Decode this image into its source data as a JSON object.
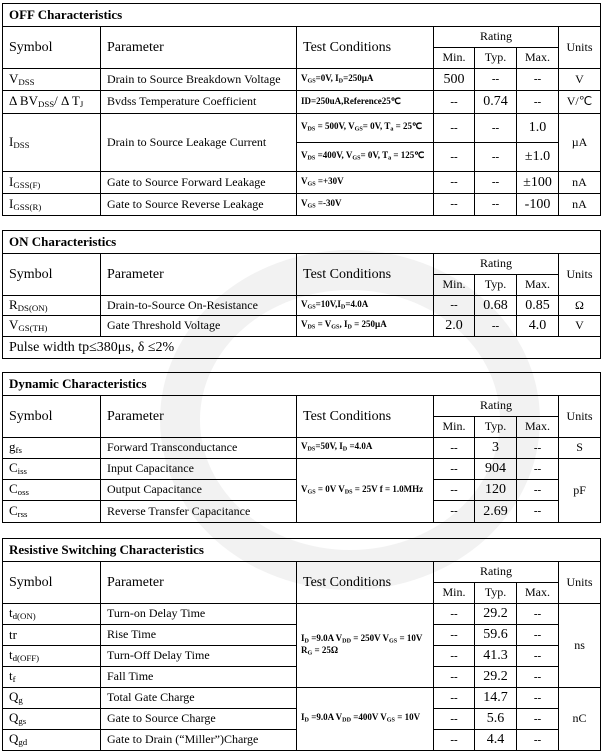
{
  "headers": {
    "symbol": "Symbol",
    "parameter": "Parameter",
    "conditions": "Test Conditions",
    "rating": "Rating",
    "min": "Min.",
    "typ": "Typ.",
    "max": "Max.",
    "units": "Units"
  },
  "tables": [
    {
      "title": "OFF Characteristics",
      "rows": [
        {
          "symbol": [
            "V",
            {
              "sub": "DSS"
            }
          ],
          "parameter": "Drain to Source Breakdown Voltage",
          "conditions": [
            "V",
            {
              "sub": "GS"
            },
            "=0V, I",
            {
              "sub": "D"
            },
            "=250µA"
          ],
          "min": "500",
          "typ": "--",
          "max": "--",
          "unit": "V"
        },
        {
          "symbol": [
            "Δ BV",
            {
              "sub": "DSS"
            },
            "/ Δ T",
            {
              "sub": "J"
            }
          ],
          "parameter": "Bvdss Temperature Coefficient",
          "conditions": [
            "ID=250uA,Reference25℃"
          ],
          "min": "--",
          "typ": "0.74",
          "max": "--",
          "unit": "V/℃"
        },
        {
          "symbol": [
            "I",
            {
              "sub": "DSS"
            }
          ],
          "parameter": "Drain to Source Leakage Current",
          "conditions": [
            "V",
            {
              "sub": "DS"
            },
            " = 500V, V",
            {
              "sub": "GS"
            },
            "= 0V, T",
            {
              "sub": "a"
            },
            " = 25℃"
          ],
          "min": "--",
          "typ": "--",
          "max": "1.0",
          "unit": "µA"
        },
        {
          "conditions": [
            "V",
            {
              "sub": "DS"
            },
            " =400V, V",
            {
              "sub": "GS"
            },
            "= 0V, T",
            {
              "sub": "a"
            },
            " = 125℃"
          ],
          "min": "--",
          "typ": "--",
          "max": "±1.0"
        },
        {
          "symbol": [
            "I",
            {
              "sub": "GSS(F)"
            }
          ],
          "parameter": "Gate to Source Forward Leakage",
          "conditions": [
            "V",
            {
              "sub": "GS"
            },
            " =+30V"
          ],
          "min": "--",
          "typ": "--",
          "max": "±100",
          "unit": "nA"
        },
        {
          "symbol": [
            "I",
            {
              "sub": "GSS(R)"
            }
          ],
          "parameter": "Gate to Source Reverse Leakage",
          "conditions": [
            "V",
            {
              "sub": "GS"
            },
            " =-30V"
          ],
          "min": "--",
          "typ": "--",
          "max": "-100",
          "unit": "nA"
        }
      ]
    },
    {
      "title": "ON Characteristics",
      "rows": [
        {
          "symbol": [
            "R",
            {
              "sub": "DS(ON)"
            }
          ],
          "parameter": "Drain-to-Source On-Resistance",
          "conditions": [
            "V",
            {
              "sub": "GS"
            },
            "=10V,I",
            {
              "sub": "D"
            },
            "=4.0A"
          ],
          "min": "--",
          "typ": "0.68",
          "max": "0.85",
          "unit": "Ω"
        },
        {
          "symbol": [
            "V",
            {
              "sub": "GS(TH)"
            }
          ],
          "parameter": "Gate Threshold Voltage",
          "conditions": [
            "V",
            {
              "sub": "DS"
            },
            " = V",
            {
              "sub": "GS"
            },
            ", I",
            {
              "sub": "D"
            },
            " = 250µA"
          ],
          "min": "2.0",
          "typ": "--",
          "max": "4.0",
          "unit": "V"
        }
      ],
      "note": "Pulse width tp≤380μs, δ ≤2%"
    },
    {
      "title": "Dynamic Characteristics",
      "rows": [
        {
          "symbol": [
            "g",
            {
              "sub": "fs"
            }
          ],
          "parameter": "Forward Transconductance",
          "conditions": [
            "V",
            {
              "sub": "DS"
            },
            "=50V, I",
            {
              "sub": "D"
            },
            " =4.0A"
          ],
          "min": "--",
          "typ": "3",
          "max": "--",
          "unit": "S"
        },
        {
          "symbol": [
            "C",
            {
              "sub": "iss"
            }
          ],
          "parameter": "Input Capacitance",
          "conditions": [
            "V",
            {
              "sub": "GS"
            },
            " = 0V V",
            {
              "sub": "DS"
            },
            " = 25V f = 1.0MHz"
          ],
          "min": "--",
          "typ": "904",
          "max": "--",
          "unit": "pF"
        },
        {
          "symbol": [
            "C",
            {
              "sub": "oss"
            }
          ],
          "parameter": "Output Capacitance",
          "min": "--",
          "typ": "120",
          "max": "--"
        },
        {
          "symbol": [
            "C",
            {
              "sub": "rss"
            }
          ],
          "parameter": "Reverse Transfer Capacitance",
          "min": "--",
          "typ": "2.69",
          "max": "--"
        }
      ]
    },
    {
      "title": "Resistive Switching Characteristics",
      "rows": [
        {
          "symbol": [
            "t",
            {
              "sub": "d(ON)"
            }
          ],
          "parameter": "Turn-on Delay Time",
          "conditions": [
            "I",
            {
              "sub": "D"
            },
            " =9.0A   V",
            {
              "sub": "DD"
            },
            " = 250V V",
            {
              "sub": "GS"
            },
            " = 10V   R",
            {
              "sub": "G"
            },
            " = 25Ω"
          ],
          "min": "--",
          "typ": "29.2",
          "max": "--",
          "unit": "ns"
        },
        {
          "symbol": [
            "tr"
          ],
          "parameter": "Rise Time",
          "min": "--",
          "typ": "59.6",
          "max": "--"
        },
        {
          "symbol": [
            "t",
            {
              "sub": "d(OFF)"
            }
          ],
          "parameter": "Turn-Off Delay Time",
          "min": "--",
          "typ": "41.3",
          "max": "--"
        },
        {
          "symbol": [
            "t",
            {
              "sub": "f"
            }
          ],
          "parameter": "Fall Time",
          "min": "--",
          "typ": "29.2",
          "max": "--"
        },
        {
          "symbol": [
            "Q",
            {
              "sub": "g"
            }
          ],
          "parameter": "Total Gate Charge",
          "conditions": [
            "I",
            {
              "sub": "D"
            },
            " =9.0A   V",
            {
              "sub": "DD"
            },
            " =400V V",
            {
              "sub": "GS"
            },
            " = 10V"
          ],
          "min": "--",
          "typ": "14.7",
          "max": "--",
          "unit": "nC"
        },
        {
          "symbol": [
            "Q",
            {
              "sub": "gs"
            }
          ],
          "parameter": "Gate to Source Charge",
          "min": "--",
          "typ": "5.6",
          "max": "--"
        },
        {
          "symbol": [
            "Q",
            {
              "sub": "gd"
            }
          ],
          "parameter": "Gate to Drain (“Miller”)Charge",
          "min": "--",
          "typ": "4.4",
          "max": "--"
        }
      ]
    }
  ]
}
